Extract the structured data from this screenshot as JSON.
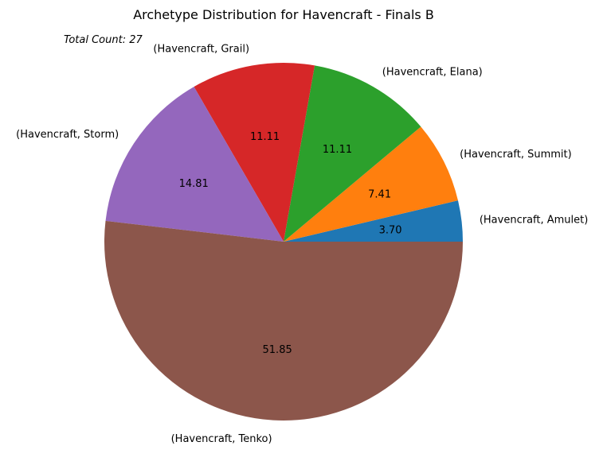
{
  "chart_data": {
    "type": "pie",
    "title": "Archetype Distribution for Havencraft - Finals B",
    "annotation": "Total Count: 27",
    "slices": [
      {
        "label": "(Havencraft, Amulet)",
        "value": 3.7,
        "pct_label": "3.70",
        "color": "#1f77b4"
      },
      {
        "label": "(Havencraft, Summit)",
        "value": 7.41,
        "pct_label": "7.41",
        "color": "#ff7f0e"
      },
      {
        "label": "(Havencraft, Elana)",
        "value": 11.11,
        "pct_label": "11.11",
        "color": "#2ca02c"
      },
      {
        "label": "(Havencraft, Grail)",
        "value": 11.11,
        "pct_label": "11.11",
        "color": "#d62728"
      },
      {
        "label": "(Havencraft, Storm)",
        "value": 14.81,
        "pct_label": "14.81",
        "color": "#9467bd"
      },
      {
        "label": "(Havencraft, Tenko)",
        "value": 51.85,
        "pct_label": "51.85",
        "color": "#8c564b"
      }
    ]
  }
}
